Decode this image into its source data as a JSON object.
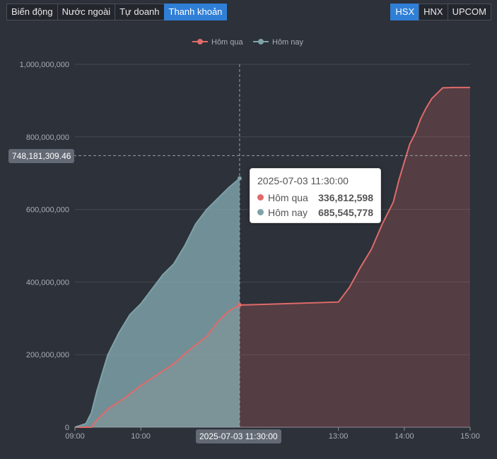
{
  "tabs": [
    {
      "label": "Biến động",
      "active": false
    },
    {
      "label": "Nước ngoài",
      "active": false
    },
    {
      "label": "Tự doanh",
      "active": false
    },
    {
      "label": "Thanh khoản",
      "active": true
    }
  ],
  "exchanges": [
    {
      "label": "HSX",
      "active": true
    },
    {
      "label": "HNX",
      "active": false
    },
    {
      "label": "UPCOM",
      "active": false
    }
  ],
  "colors": {
    "yesterday": "#e06b6a",
    "today": "#7ea2a8",
    "background": "#2d3139",
    "active_button": "#2f7fd6"
  },
  "tooltip": {
    "time": "2025-07-03 11:30:00",
    "rows": [
      {
        "name": "Hôm qua",
        "value": "336,812,598"
      },
      {
        "name": "Hôm nay",
        "value": "685,545,778"
      }
    ]
  },
  "crosshair": {
    "y_label": "748,181,309.46",
    "y_value": 748181309.46,
    "x_label": "2025-07-03 11:30:00"
  },
  "chart_data": {
    "type": "area",
    "x_ticks": [
      "09:00",
      "10:00",
      "13:00",
      "14:00",
      "15:00"
    ],
    "y_ticks": [
      "0",
      "200,000,000",
      "400,000,000",
      "600,000,000",
      "800,000,000",
      "1,000,000,000"
    ],
    "ylim": [
      0,
      1000000000
    ],
    "legend_position": "top-center",
    "grid": true,
    "series": [
      {
        "name": "Hôm qua",
        "color": "#e06b6a",
        "points": [
          [
            "09:00",
            0
          ],
          [
            "09:15",
            0
          ],
          [
            "09:20",
            20000000
          ],
          [
            "09:30",
            50000000
          ],
          [
            "09:45",
            80000000
          ],
          [
            "10:00",
            115000000
          ],
          [
            "10:15",
            145000000
          ],
          [
            "10:30",
            175000000
          ],
          [
            "10:45",
            215000000
          ],
          [
            "11:00",
            250000000
          ],
          [
            "11:10",
            290000000
          ],
          [
            "11:20",
            320000000
          ],
          [
            "11:30",
            336812598
          ],
          [
            "11:35",
            337000000
          ],
          [
            "13:00",
            345000000
          ],
          [
            "13:10",
            385000000
          ],
          [
            "13:20",
            440000000
          ],
          [
            "13:30",
            490000000
          ],
          [
            "13:40",
            560000000
          ],
          [
            "13:50",
            620000000
          ],
          [
            "13:55",
            680000000
          ],
          [
            "14:00",
            730000000
          ],
          [
            "14:05",
            780000000
          ],
          [
            "14:10",
            810000000
          ],
          [
            "14:15",
            850000000
          ],
          [
            "14:20",
            880000000
          ],
          [
            "14:25",
            905000000
          ],
          [
            "14:30",
            920000000
          ],
          [
            "14:35",
            935000000
          ],
          [
            "14:45",
            936000000
          ],
          [
            "15:00",
            936000000
          ]
        ]
      },
      {
        "name": "Hôm nay",
        "color": "#7ea2a8",
        "points": [
          [
            "09:00",
            0
          ],
          [
            "09:10",
            10000000
          ],
          [
            "09:15",
            40000000
          ],
          [
            "09:20",
            100000000
          ],
          [
            "09:25",
            150000000
          ],
          [
            "09:30",
            200000000
          ],
          [
            "09:40",
            260000000
          ],
          [
            "09:50",
            310000000
          ],
          [
            "10:00",
            340000000
          ],
          [
            "10:10",
            380000000
          ],
          [
            "10:20",
            420000000
          ],
          [
            "10:30",
            450000000
          ],
          [
            "10:40",
            500000000
          ],
          [
            "10:50",
            560000000
          ],
          [
            "11:00",
            600000000
          ],
          [
            "11:10",
            630000000
          ],
          [
            "11:20",
            660000000
          ],
          [
            "11:30",
            685545778
          ]
        ]
      }
    ]
  }
}
